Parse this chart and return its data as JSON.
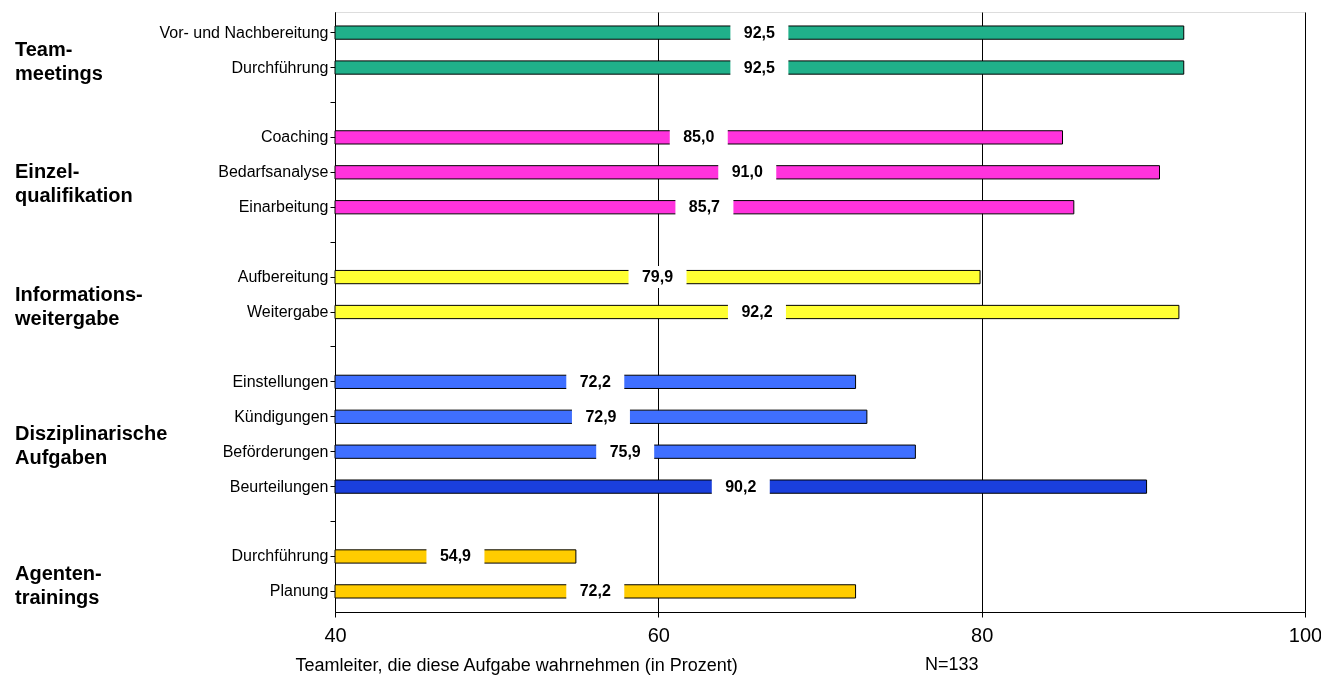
{
  "chart_data": {
    "type": "bar",
    "orientation": "horizontal",
    "categories": [
      "Vor- und Nachbereitung",
      "Durchführung",
      null,
      "Coaching",
      "Bedarfsanalyse",
      "Einarbeitung",
      null,
      "Aufbereitung",
      "Weitergabe",
      null,
      "Einstellungen",
      "Kündigungen",
      "Beförderungen",
      "Beurteilungen",
      null,
      "Durchführung",
      "Planung"
    ],
    "values": [
      92.5,
      92.5,
      null,
      85.0,
      91.0,
      85.7,
      null,
      79.9,
      92.2,
      null,
      72.2,
      72.9,
      75.9,
      90.2,
      null,
      54.9,
      72.2
    ],
    "value_labels": [
      "92,5",
      "92,5",
      null,
      "85,0",
      "91,0",
      "85,7",
      null,
      "79,9",
      "92,2",
      null,
      "72,2",
      "72,9",
      "75,9",
      "90,2",
      null,
      "54,9",
      "72,2"
    ],
    "colors": [
      "#20b08a",
      "#20b08a",
      null,
      "#ff33dd",
      "#ff33dd",
      "#ff33dd",
      null,
      "#ffff33",
      "#ffff33",
      null,
      "#3f6fff",
      "#3f6fff",
      "#3f6fff",
      "#1a3fdd",
      null,
      "#ffcc00",
      "#ffcc00"
    ],
    "xlim": [
      40,
      100
    ],
    "xticks": [
      40,
      60,
      80,
      100
    ],
    "grid": "x",
    "xlabel": "Teamleiter, die diese Aufgabe wahrnehmen (in Prozent)",
    "annotations": [
      "Team-\nmeetings",
      "Einzel-\nqualifikation",
      "Informations-\nweitergabe",
      "Disziplinarische\nAufgaben",
      "Agenten-\ntrainings",
      "N=133"
    ]
  }
}
